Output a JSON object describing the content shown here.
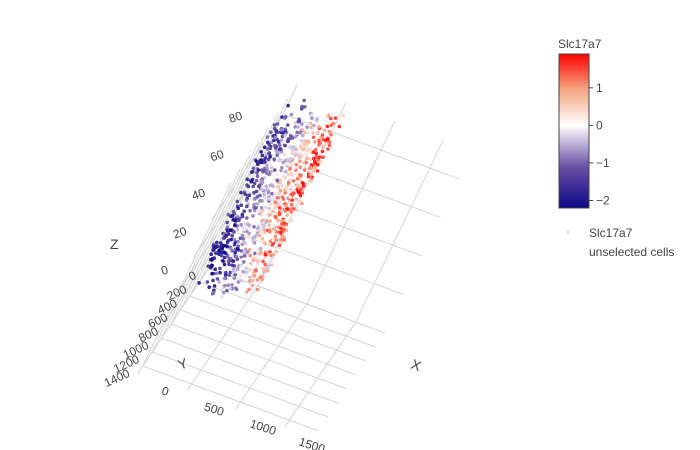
{
  "chart_data": {
    "type": "scatter",
    "subtype": "scatter3d",
    "colorscale": [
      "#0d0887",
      "#6a51a3",
      "#ffffff",
      "#f4a582",
      "#ff0000"
    ],
    "colorbar": {
      "title": "Slc17a7",
      "range": [
        -2.2,
        1.9
      ],
      "ticks": [
        1,
        0,
        -1,
        -2
      ],
      "tick_labels": [
        "1",
        "0",
        "−1",
        "−2"
      ]
    },
    "axes": {
      "x": {
        "title": "X",
        "range": [
          0,
          1800
        ],
        "ticks": [
          0,
          500,
          1000,
          1500
        ]
      },
      "y": {
        "title": "Y",
        "range": [
          0,
          1500
        ],
        "ticks": [
          0,
          200,
          400,
          600,
          800,
          1000,
          1200,
          1400
        ]
      },
      "z": {
        "title": "Z",
        "range": [
          0,
          95
        ],
        "ticks": [
          0,
          20,
          40,
          60,
          80
        ]
      }
    },
    "legend": {
      "position": "right",
      "items": [
        {
          "label": "Slc17a7",
          "marker_color": "#cfcfe6"
        },
        {
          "label": "unselected cells"
        }
      ]
    },
    "point_cloud": {
      "description": "dense cloud of cells colored by Slc17a7 expression",
      "x_range": [
        0,
        1000
      ],
      "y_range": [
        0,
        1400
      ],
      "z_range": [
        5,
        90
      ],
      "value_trend": "high (red) near center-top, low (blue) at the edges"
    }
  }
}
